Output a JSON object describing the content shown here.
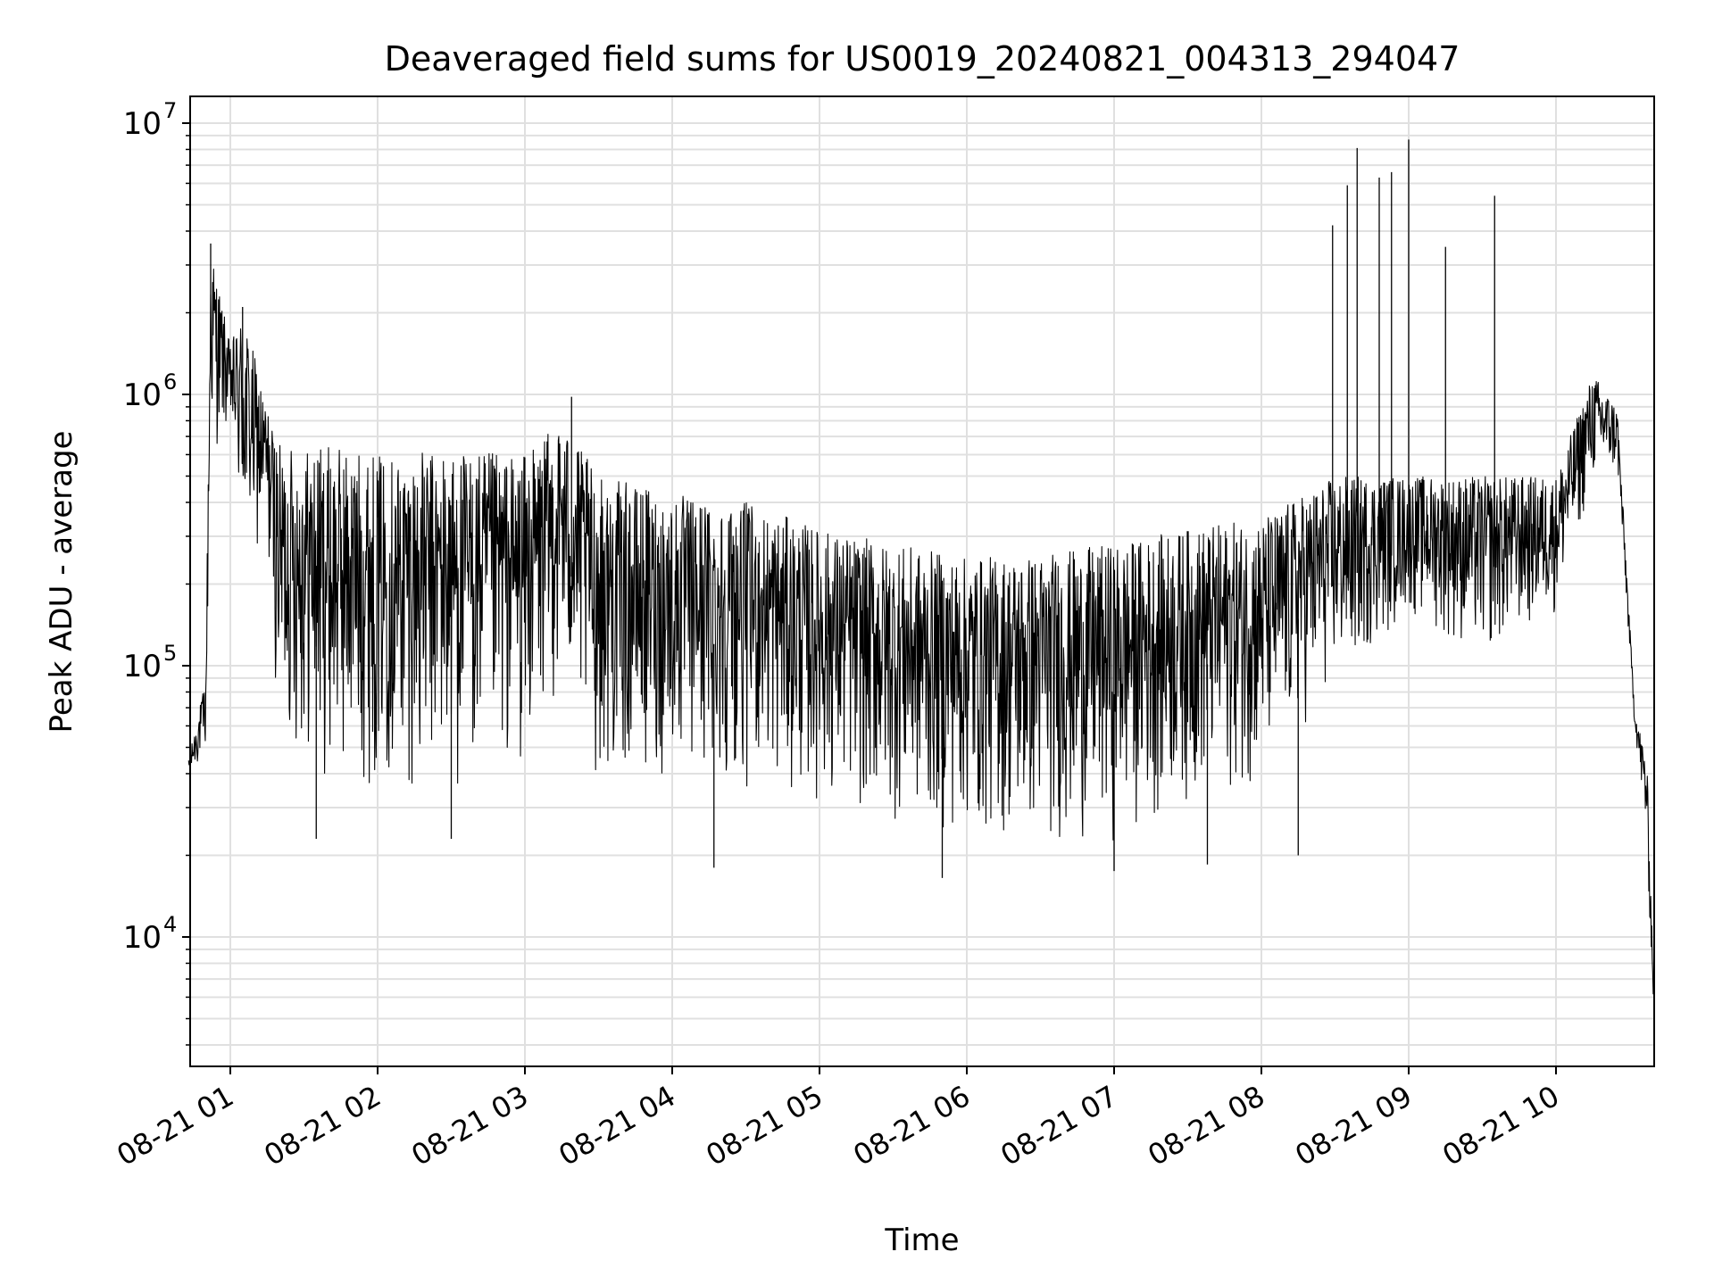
{
  "chart_data": {
    "type": "line",
    "title": "Deaveraged field sums for US0019_20240821_004313_294047",
    "xlabel": "Time",
    "ylabel": "Peak ADU - average",
    "yscale": "log",
    "ylim": [
      3500,
      13000000
    ],
    "xlim": [
      "2024-08-21 00:43:13",
      "2024-08-21 10:40:00"
    ],
    "grid": true,
    "line_color": "#000000",
    "grid_color": "#e0e0e0",
    "x_ticks": [
      {
        "value": "2024-08-21 01:00",
        "label": "08-21 01"
      },
      {
        "value": "2024-08-21 02:00",
        "label": "08-21 02"
      },
      {
        "value": "2024-08-21 03:00",
        "label": "08-21 03"
      },
      {
        "value": "2024-08-21 04:00",
        "label": "08-21 04"
      },
      {
        "value": "2024-08-21 05:00",
        "label": "08-21 05"
      },
      {
        "value": "2024-08-21 06:00",
        "label": "08-21 06"
      },
      {
        "value": "2024-08-21 07:00",
        "label": "08-21 07"
      },
      {
        "value": "2024-08-21 08:00",
        "label": "08-21 08"
      },
      {
        "value": "2024-08-21 09:00",
        "label": "08-21 09"
      },
      {
        "value": "2024-08-21 10:00",
        "label": "08-21 10"
      }
    ],
    "y_ticks": [
      {
        "value": 10000,
        "base": "10",
        "exp": "4"
      },
      {
        "value": 100000,
        "base": "10",
        "exp": "5"
      },
      {
        "value": 1000000,
        "base": "10",
        "exp": "6"
      },
      {
        "value": 10000000,
        "base": "10",
        "exp": "7"
      }
    ],
    "envelope": [
      {
        "t": "2024-08-21 00:43",
        "min": 38000,
        "max": 45000
      },
      {
        "t": "2024-08-21 00:50",
        "min": 45000,
        "max": 90000
      },
      {
        "t": "2024-08-21 00:52",
        "min": 600000,
        "max": 3600000
      },
      {
        "t": "2024-08-21 01:00",
        "min": 700000,
        "max": 1500000
      },
      {
        "t": "2024-08-21 01:05",
        "min": 220000,
        "max": 2100000
      },
      {
        "t": "2024-08-21 01:15",
        "min": 250000,
        "max": 900000
      },
      {
        "t": "2024-08-21 01:20",
        "min": 50000,
        "max": 650000
      },
      {
        "t": "2024-08-21 01:40",
        "min": 35000,
        "max": 650000
      },
      {
        "t": "2024-08-21 02:00",
        "min": 35000,
        "max": 600000
      },
      {
        "t": "2024-08-21 02:30",
        "min": 32000,
        "max": 620000
      },
      {
        "t": "2024-08-21 03:00",
        "min": 40000,
        "max": 600000
      },
      {
        "t": "2024-08-21 03:15",
        "min": 80000,
        "max": 800000
      },
      {
        "t": "2024-08-21 03:30",
        "min": 35000,
        "max": 500000
      },
      {
        "t": "2024-08-21 04:00",
        "min": 35000,
        "max": 430000
      },
      {
        "t": "2024-08-21 04:30",
        "min": 35000,
        "max": 400000
      },
      {
        "t": "2024-08-21 05:00",
        "min": 30000,
        "max": 320000
      },
      {
        "t": "2024-08-21 05:30",
        "min": 25000,
        "max": 280000
      },
      {
        "t": "2024-08-21 06:00",
        "min": 22000,
        "max": 250000
      },
      {
        "t": "2024-08-21 06:30",
        "min": 21000,
        "max": 260000
      },
      {
        "t": "2024-08-21 07:00",
        "min": 22000,
        "max": 280000
      },
      {
        "t": "2024-08-21 07:30",
        "min": 30000,
        "max": 320000
      },
      {
        "t": "2024-08-21 08:00",
        "min": 35000,
        "max": 350000
      },
      {
        "t": "2024-08-21 08:30",
        "min": 80000,
        "max": 500000
      },
      {
        "t": "2024-08-21 09:00",
        "min": 150000,
        "max": 500000
      },
      {
        "t": "2024-08-21 09:30",
        "min": 100000,
        "max": 500000
      },
      {
        "t": "2024-08-21 10:00",
        "min": 150000,
        "max": 500000
      },
      {
        "t": "2024-08-21 10:15",
        "min": 450000,
        "max": 1200000
      },
      {
        "t": "2024-08-21 10:25",
        "min": 500000,
        "max": 900000
      },
      {
        "t": "2024-08-21 10:32",
        "min": 60000,
        "max": 70000
      },
      {
        "t": "2024-08-21 10:37",
        "min": 20000,
        "max": 45000
      },
      {
        "t": "2024-08-21 10:40",
        "min": 4500,
        "max": 6000
      }
    ],
    "spikes": [
      {
        "t": "2024-08-21 00:52",
        "y": 3600000
      },
      {
        "t": "2024-08-21 01:05",
        "y": 2100000
      },
      {
        "t": "2024-08-21 03:19",
        "y": 980000
      },
      {
        "t": "2024-08-21 08:29",
        "y": 4200000
      },
      {
        "t": "2024-08-21 08:35",
        "y": 5900000
      },
      {
        "t": "2024-08-21 08:39",
        "y": 8100000
      },
      {
        "t": "2024-08-21 08:48",
        "y": 6300000
      },
      {
        "t": "2024-08-21 08:53",
        "y": 6600000
      },
      {
        "t": "2024-08-21 09:00",
        "y": 8700000
      },
      {
        "t": "2024-08-21 09:15",
        "y": 3500000
      },
      {
        "t": "2024-08-21 09:35",
        "y": 5400000
      }
    ],
    "dips": [
      {
        "t": "2024-08-21 01:35",
        "y": 23000
      },
      {
        "t": "2024-08-21 02:30",
        "y": 23000
      },
      {
        "t": "2024-08-21 04:17",
        "y": 18000
      },
      {
        "t": "2024-08-21 05:50",
        "y": 16500
      },
      {
        "t": "2024-08-21 07:00",
        "y": 17500
      },
      {
        "t": "2024-08-21 07:38",
        "y": 18500
      },
      {
        "t": "2024-08-21 08:15",
        "y": 20000
      }
    ]
  }
}
